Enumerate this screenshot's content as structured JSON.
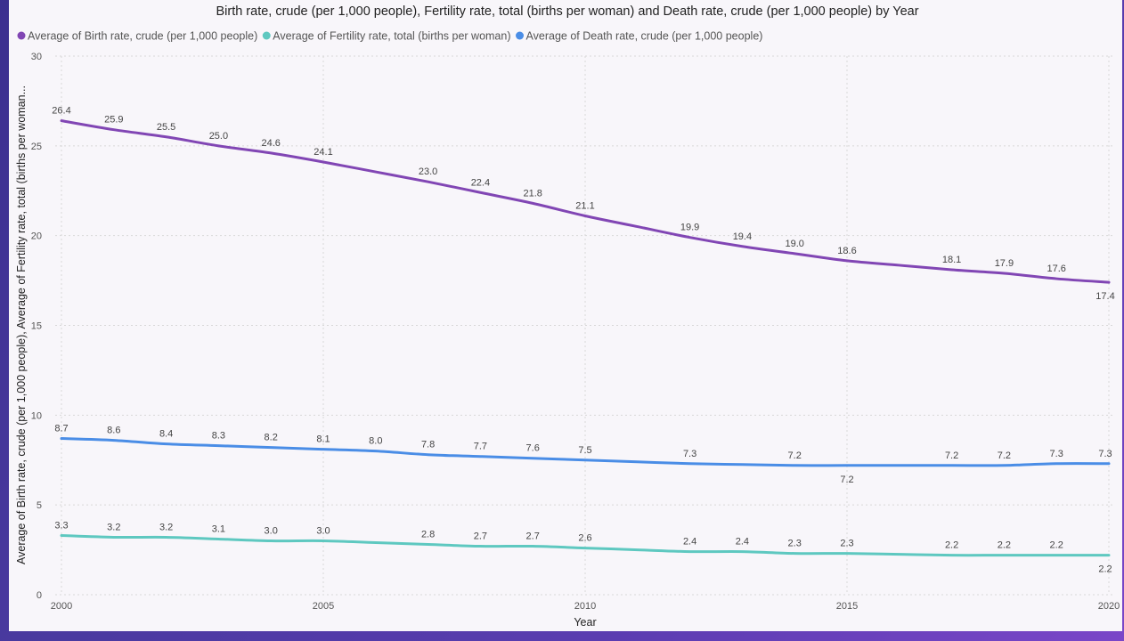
{
  "chart_data": {
    "type": "line",
    "title": "Birth rate, crude (per 1,000 people), Fertility rate, total (births per woman) and Death rate, crude (per 1,000 people) by Year",
    "xlabel": "Year",
    "ylabel": "Average of Birth rate, crude (per 1,000 people), Average of Fertility rate, total (births per woman...",
    "xlim": [
      2000,
      2020
    ],
    "ylim": [
      0,
      30
    ],
    "x_ticks": [
      2000,
      2005,
      2010,
      2015,
      2020
    ],
    "y_ticks": [
      0,
      5,
      10,
      15,
      20,
      25,
      30
    ],
    "grid": true,
    "legend_position": "top-left",
    "series": [
      {
        "name": "Average of Birth rate, crude (per 1,000 people)",
        "color": "#8146b4",
        "points": [
          {
            "x": 2000,
            "y": 26.4,
            "label": "26.4"
          },
          {
            "x": 2001,
            "y": 25.9,
            "label": "25.9"
          },
          {
            "x": 2002,
            "y": 25.5,
            "label": "25.5"
          },
          {
            "x": 2003,
            "y": 25.0,
            "label": "25.0"
          },
          {
            "x": 2004,
            "y": 24.6,
            "label": "24.6"
          },
          {
            "x": 2005,
            "y": 24.1,
            "label": "24.1"
          },
          {
            "x": 2006,
            "y": 23.55,
            "label": ""
          },
          {
            "x": 2007,
            "y": 23.0,
            "label": "23.0"
          },
          {
            "x": 2008,
            "y": 22.4,
            "label": "22.4"
          },
          {
            "x": 2009,
            "y": 21.8,
            "label": "21.8"
          },
          {
            "x": 2010,
            "y": 21.1,
            "label": "21.1"
          },
          {
            "x": 2011,
            "y": 20.5,
            "label": ""
          },
          {
            "x": 2012,
            "y": 19.9,
            "label": "19.9"
          },
          {
            "x": 2013,
            "y": 19.4,
            "label": "19.4"
          },
          {
            "x": 2014,
            "y": 19.0,
            "label": "19.0"
          },
          {
            "x": 2015,
            "y": 18.6,
            "label": "18.6"
          },
          {
            "x": 2016,
            "y": 18.35,
            "label": ""
          },
          {
            "x": 2017,
            "y": 18.1,
            "label": "18.1"
          },
          {
            "x": 2018,
            "y": 17.9,
            "label": "17.9"
          },
          {
            "x": 2019,
            "y": 17.6,
            "label": "17.6"
          },
          {
            "x": 2020,
            "y": 17.4,
            "label": "17.4",
            "below": true
          }
        ]
      },
      {
        "name": "Average of Fertility rate, total (births per woman)",
        "color": "#5ec8c0",
        "points": [
          {
            "x": 2000,
            "y": 3.3,
            "label": "3.3"
          },
          {
            "x": 2001,
            "y": 3.2,
            "label": "3.2"
          },
          {
            "x": 2002,
            "y": 3.2,
            "label": "3.2"
          },
          {
            "x": 2003,
            "y": 3.1,
            "label": "3.1"
          },
          {
            "x": 2004,
            "y": 3.0,
            "label": "3.0"
          },
          {
            "x": 2005,
            "y": 3.0,
            "label": "3.0"
          },
          {
            "x": 2006,
            "y": 2.9,
            "label": ""
          },
          {
            "x": 2007,
            "y": 2.8,
            "label": "2.8"
          },
          {
            "x": 2008,
            "y": 2.7,
            "label": "2.7"
          },
          {
            "x": 2009,
            "y": 2.7,
            "label": "2.7"
          },
          {
            "x": 2010,
            "y": 2.6,
            "label": "2.6"
          },
          {
            "x": 2011,
            "y": 2.5,
            "label": ""
          },
          {
            "x": 2012,
            "y": 2.4,
            "label": "2.4"
          },
          {
            "x": 2013,
            "y": 2.4,
            "label": "2.4"
          },
          {
            "x": 2014,
            "y": 2.3,
            "label": "2.3"
          },
          {
            "x": 2015,
            "y": 2.3,
            "label": "2.3"
          },
          {
            "x": 2016,
            "y": 2.25,
            "label": ""
          },
          {
            "x": 2017,
            "y": 2.2,
            "label": "2.2"
          },
          {
            "x": 2018,
            "y": 2.2,
            "label": "2.2"
          },
          {
            "x": 2019,
            "y": 2.2,
            "label": "2.2"
          },
          {
            "x": 2020,
            "y": 2.2,
            "label": "2.2",
            "below": true
          }
        ]
      },
      {
        "name": "Average of Death rate, crude (per 1,000 people)",
        "color": "#4a8de6",
        "points": [
          {
            "x": 2000,
            "y": 8.7,
            "label": "8.7"
          },
          {
            "x": 2001,
            "y": 8.6,
            "label": "8.6"
          },
          {
            "x": 2002,
            "y": 8.4,
            "label": "8.4"
          },
          {
            "x": 2003,
            "y": 8.3,
            "label": "8.3"
          },
          {
            "x": 2004,
            "y": 8.2,
            "label": "8.2"
          },
          {
            "x": 2005,
            "y": 8.1,
            "label": "8.1"
          },
          {
            "x": 2006,
            "y": 8.0,
            "label": "8.0"
          },
          {
            "x": 2007,
            "y": 7.8,
            "label": "7.8"
          },
          {
            "x": 2008,
            "y": 7.7,
            "label": "7.7"
          },
          {
            "x": 2009,
            "y": 7.6,
            "label": "7.6"
          },
          {
            "x": 2010,
            "y": 7.5,
            "label": "7.5"
          },
          {
            "x": 2011,
            "y": 7.4,
            "label": ""
          },
          {
            "x": 2012,
            "y": 7.3,
            "label": "7.3"
          },
          {
            "x": 2013,
            "y": 7.25,
            "label": ""
          },
          {
            "x": 2014,
            "y": 7.2,
            "label": "7.2"
          },
          {
            "x": 2015,
            "y": 7.2,
            "label": "7.2",
            "below": true
          },
          {
            "x": 2016,
            "y": 7.2,
            "label": ""
          },
          {
            "x": 2017,
            "y": 7.2,
            "label": "7.2"
          },
          {
            "x": 2018,
            "y": 7.2,
            "label": "7.2"
          },
          {
            "x": 2019,
            "y": 7.3,
            "label": "7.3"
          },
          {
            "x": 2020,
            "y": 7.3,
            "label": "7.3"
          }
        ]
      }
    ]
  }
}
